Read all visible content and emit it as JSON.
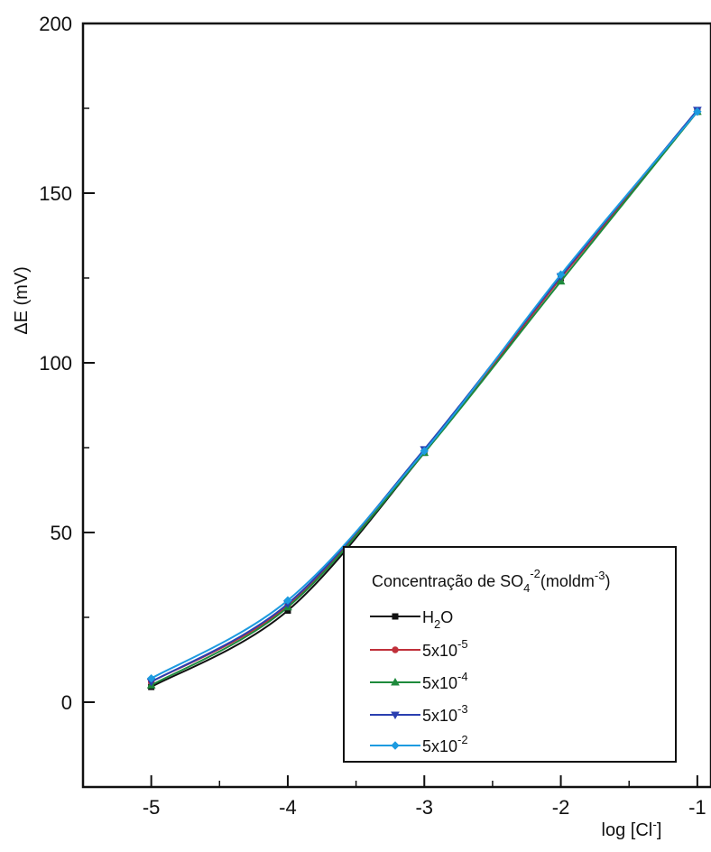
{
  "chart_data": {
    "type": "line",
    "title": "",
    "xlabel": {
      "base": "log [Cl",
      "sup": "-",
      "tail": "]"
    },
    "ylabel": "ΔE (mV)",
    "xlim": [
      -5.5,
      -0.9
    ],
    "ylim": [
      -25,
      200
    ],
    "x_ticks": [
      -5,
      -4,
      -3,
      -2,
      -1
    ],
    "x_tick_labels": [
      "-5",
      "-4",
      "-3",
      "-2",
      "-1"
    ],
    "y_ticks": [
      0,
      50,
      100,
      150,
      200
    ],
    "y_tick_labels": [
      "0",
      "50",
      "100",
      "150",
      "200"
    ],
    "legend_position": "bottom-right",
    "legend_title": {
      "pre": "Concentração de SO",
      "sub": "4",
      "sup": "-2",
      "mid": "(moldm",
      "sup2": "-3",
      "post": ")"
    },
    "series": [
      {
        "legend_label": {
          "base": "H",
          "sub": "2",
          "tail": "O"
        },
        "color": "#111111",
        "marker": "square",
        "x": [
          -5,
          -4,
          -3,
          -2,
          -1
        ],
        "y": [
          4.5,
          27,
          73.5,
          125,
          174
        ]
      },
      {
        "legend_label": {
          "base": "5x10",
          "sup": "-5"
        },
        "color": "#c0303a",
        "marker": "circle",
        "x": [
          -5,
          -4,
          -3,
          -2,
          -1
        ],
        "y": [
          6,
          28.5,
          74,
          125,
          174
        ]
      },
      {
        "legend_label": {
          "base": "5x10",
          "sup": "-4"
        },
        "color": "#1e8a3c",
        "marker": "triangle-up",
        "x": [
          -5,
          -4,
          -3,
          -2,
          -1
        ],
        "y": [
          5,
          28,
          73.5,
          124,
          174
        ]
      },
      {
        "legend_label": {
          "base": "5x10",
          "sup": "-3"
        },
        "color": "#2a3fb0",
        "marker": "triangle-down",
        "x": [
          -5,
          -4,
          -3,
          -2,
          -1
        ],
        "y": [
          6,
          29,
          74.5,
          125.5,
          174.5
        ]
      },
      {
        "legend_label": {
          "base": "5x10",
          "sup": "-2"
        },
        "color": "#1d9be0",
        "marker": "diamond",
        "x": [
          -5,
          -4,
          -3,
          -2,
          -1
        ],
        "y": [
          7,
          30,
          74,
          126,
          174
        ]
      }
    ]
  }
}
